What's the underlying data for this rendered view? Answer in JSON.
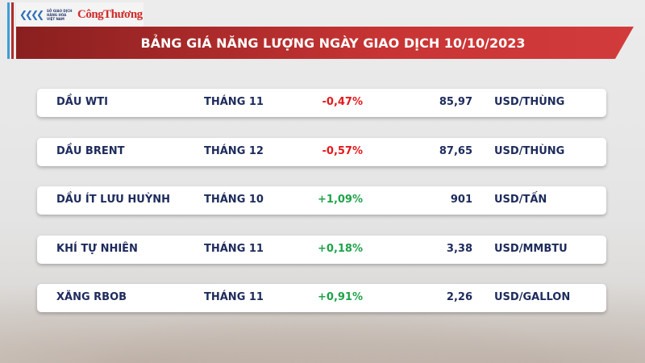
{
  "header": {
    "logo_exchange_text": "SỞ GIAO DỊCH HÀNG HÓA VIỆT NAM",
    "logo_brand": "CôngThương",
    "title": "BẢNG GIÁ NĂNG LƯỢNG NGÀY GIAO DỊCH 10/10/2023"
  },
  "colors": {
    "negative": "#e3191c",
    "positive": "#1ea34a",
    "banner": "#c83434",
    "text": "#1d2b5c"
  },
  "rows": [
    {
      "name": "DẦU WTI",
      "month": "THÁNG 11",
      "change": "-0,47%",
      "price": "85,97",
      "unit": "USD/THÙNG"
    },
    {
      "name": "DẦU BRENT",
      "month": "THÁNG 12",
      "change": "-0,57%",
      "price": "87,65",
      "unit": "USD/THÙNG"
    },
    {
      "name": "DẦU ÍT LƯU HUỲNH",
      "month": "THÁNG 10",
      "change": "+1,09%",
      "price": "901",
      "unit": "USD/TẤN"
    },
    {
      "name": "KHÍ TỰ NHIÊN",
      "month": "THÁNG 11",
      "change": "+0,18%",
      "price": "3,38",
      "unit": "USD/MMBTU"
    },
    {
      "name": "XĂNG RBOB",
      "month": "THÁNG 11",
      "change": "+0,91%",
      "price": "2,26",
      "unit": "USD/GALLON"
    }
  ]
}
